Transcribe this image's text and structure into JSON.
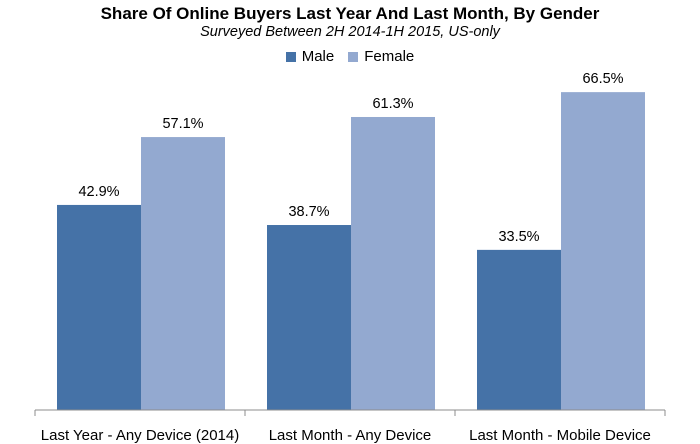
{
  "chart_data": {
    "type": "bar",
    "title": "Share Of Online Buyers Last Year And Last Month, By Gender",
    "subtitle": "Surveyed Between 2H 2014-1H 2015, US-only",
    "xlabel": "",
    "ylabel": "",
    "ylim": [
      0,
      70
    ],
    "grid": false,
    "legend_position": "top-center",
    "categories": [
      "Last Year - Any Device (2014)",
      "Last Month - Any Device",
      "Last Month - Mobile Device"
    ],
    "series": [
      {
        "name": "Male",
        "values": [
          42.9,
          38.7,
          33.5
        ],
        "labels": [
          "42.9%",
          "38.7%",
          "33.5%"
        ],
        "color": "#4572a7"
      },
      {
        "name": "Female",
        "values": [
          57.1,
          61.3,
          66.5
        ],
        "labels": [
          "57.1%",
          "61.3%",
          "66.5%"
        ],
        "color": "#93a9d0"
      }
    ]
  }
}
